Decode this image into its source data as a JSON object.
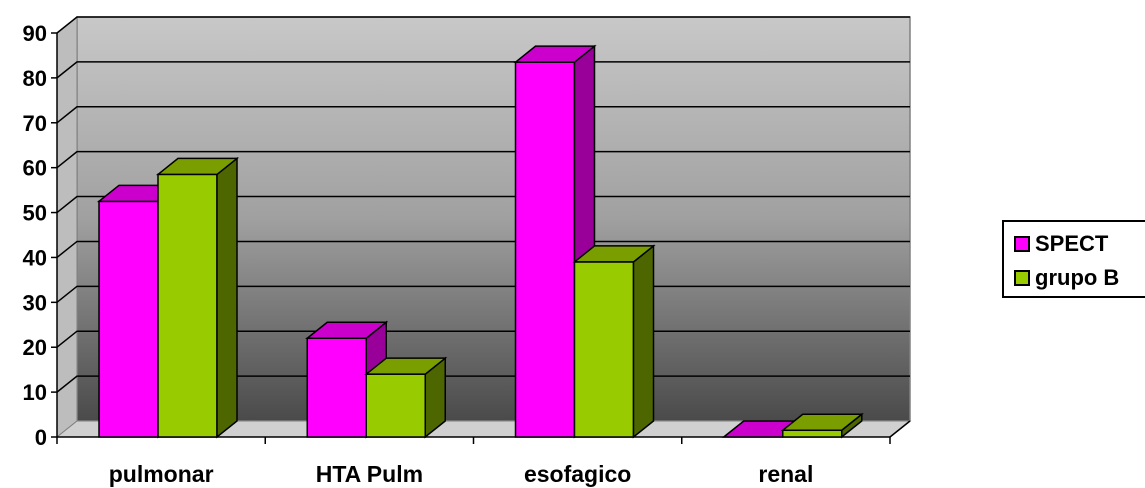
{
  "chart_data": {
    "type": "bar",
    "categories": [
      "pulmonar",
      "HTA Pulm",
      "esofagico",
      "renal"
    ],
    "series": [
      {
        "name": "SPECT",
        "color": "#FF00FF",
        "side_color": "#990099",
        "top_color": "#CC00CC",
        "values": [
          52.5,
          22,
          83.5,
          0
        ]
      },
      {
        "name": "grupo B",
        "color": "#99CC00",
        "side_color": "#4D6600",
        "top_color": "#7A9E00",
        "values": [
          58.5,
          14,
          39,
          1.5
        ]
      }
    ],
    "yticks": [
      "0",
      "10",
      "20",
      "30",
      "40",
      "50",
      "60",
      "70",
      "80",
      "90"
    ],
    "ylim": [
      0,
      90
    ],
    "title": "",
    "xlabel": "",
    "ylabel": "",
    "grid": true,
    "legend_position": "right",
    "style": "3d-clustered-column"
  }
}
